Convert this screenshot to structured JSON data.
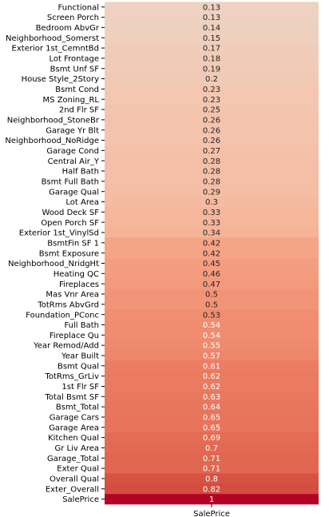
{
  "chart_data": {
    "type": "heatmap",
    "title": "",
    "column_label": "SalePrice",
    "colormap": "coolwarm",
    "rows": [
      {
        "label": "Functional",
        "value": 0.13
      },
      {
        "label": "Screen Porch",
        "value": 0.13
      },
      {
        "label": "Bedroom AbvGr",
        "value": 0.14
      },
      {
        "label": "Neighborhood_Somerst",
        "value": 0.15
      },
      {
        "label": "Exterior 1st_CemntBd",
        "value": 0.17
      },
      {
        "label": "Lot Frontage",
        "value": 0.18
      },
      {
        "label": "Bsmt Unf SF",
        "value": 0.19
      },
      {
        "label": "House Style_2Story",
        "value": 0.2
      },
      {
        "label": "Bsmt Cond",
        "value": 0.23
      },
      {
        "label": "MS Zoning_RL",
        "value": 0.23
      },
      {
        "label": "2nd Flr SF",
        "value": 0.25
      },
      {
        "label": "Neighborhood_StoneBr",
        "value": 0.26
      },
      {
        "label": "Garage Yr Blt",
        "value": 0.26
      },
      {
        "label": "Neighborhood_NoRidge",
        "value": 0.26
      },
      {
        "label": "Garage Cond",
        "value": 0.27
      },
      {
        "label": "Central Air_Y",
        "value": 0.28
      },
      {
        "label": "Half Bath",
        "value": 0.28
      },
      {
        "label": "Bsmt Full Bath",
        "value": 0.28
      },
      {
        "label": "Garage Qual",
        "value": 0.29
      },
      {
        "label": "Lot Area",
        "value": 0.3
      },
      {
        "label": "Wood Deck SF",
        "value": 0.33
      },
      {
        "label": "Open Porch SF",
        "value": 0.33
      },
      {
        "label": "Exterior 1st_VinylSd",
        "value": 0.34
      },
      {
        "label": "BsmtFin SF 1",
        "value": 0.42
      },
      {
        "label": "Bsmt Exposure",
        "value": 0.42
      },
      {
        "label": "Neighborhood_NridgHt",
        "value": 0.45
      },
      {
        "label": "Heating QC",
        "value": 0.46
      },
      {
        "label": "Fireplaces",
        "value": 0.47
      },
      {
        "label": "Mas Vnr Area",
        "value": 0.5
      },
      {
        "label": "TotRms AbvGrd",
        "value": 0.5
      },
      {
        "label": "Foundation_PConc",
        "value": 0.53
      },
      {
        "label": "Full Bath",
        "value": 0.54
      },
      {
        "label": "Fireplace Qu",
        "value": 0.54
      },
      {
        "label": "Year Remod/Add",
        "value": 0.55
      },
      {
        "label": "Year Built",
        "value": 0.57
      },
      {
        "label": "Bsmt Qual",
        "value": 0.61
      },
      {
        "label": "TotRms_GrLiv",
        "value": 0.62
      },
      {
        "label": "1st Flr SF",
        "value": 0.62
      },
      {
        "label": "Total Bsmt SF",
        "value": 0.63
      },
      {
        "label": "Bsmt_Total",
        "value": 0.64
      },
      {
        "label": "Garage Cars",
        "value": 0.65
      },
      {
        "label": "Garage Area",
        "value": 0.65
      },
      {
        "label": "Kitchen Qual",
        "value": 0.69
      },
      {
        "label": "Gr Liv Area",
        "value": 0.7
      },
      {
        "label": "Garage_Total",
        "value": 0.71
      },
      {
        "label": "Exter Qual",
        "value": 0.71
      },
      {
        "label": "Overall Qual",
        "value": 0.8
      },
      {
        "label": "Exter_Overall",
        "value": 0.82
      },
      {
        "label": "SalePrice",
        "value": 1
      }
    ]
  }
}
